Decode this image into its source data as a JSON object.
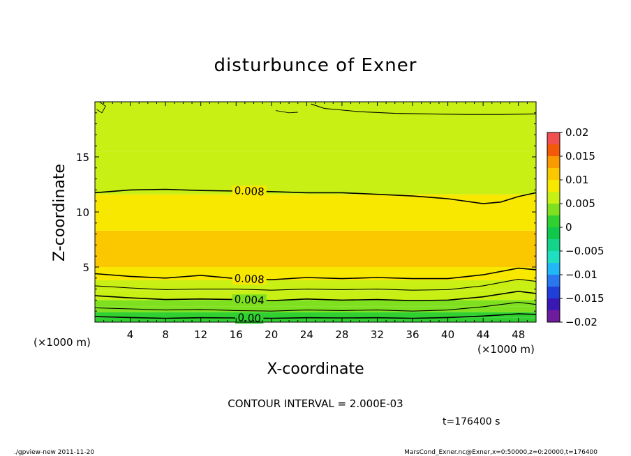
{
  "chart_data": {
    "type": "heatmap",
    "title": "disturbunce of Exner",
    "xlabel": "X-coordinate",
    "ylabel": "Z-coordinate",
    "x_unit": "(×1000 m)",
    "y_unit": "(×1000 m)",
    "xlim": [
      0,
      50
    ],
    "ylim": [
      0,
      20
    ],
    "x_ticks": [
      4,
      8,
      12,
      16,
      20,
      24,
      28,
      32,
      36,
      40,
      44,
      48
    ],
    "y_ticks": [
      5,
      10,
      15
    ],
    "contour_interval_text": "CONTOUR INTERVAL = 2.000E-03",
    "time_text": "t=176400 s",
    "footer_left": "./gpview-new   2011-11-20",
    "footer_right": "MarsCond_Exner.nc@Exner,x=0:50000,z=0:20000,t=176400",
    "colorbar": {
      "min": -0.02,
      "max": 0.02,
      "tick_values": [
        0.02,
        0.015,
        0.01,
        0.005,
        0,
        -0.005,
        -0.01,
        -0.015,
        -0.02
      ],
      "tick_labels": [
        "0.02",
        "0.015",
        "0.01",
        "0.005",
        "0",
        "−0.005",
        "−0.01",
        "−0.015",
        "−0.02"
      ],
      "levels": [
        -0.02,
        -0.0175,
        -0.015,
        -0.0125,
        -0.01,
        -0.0075,
        -0.005,
        -0.0025,
        0,
        0.0025,
        0.005,
        0.0075,
        0.01,
        0.0125,
        0.015,
        0.0175,
        0.02
      ],
      "colors": [
        "#6e1b9e",
        "#3a18b4",
        "#1f3fd8",
        "#2a78f0",
        "#21b8f5",
        "#1ee0c0",
        "#14d48a",
        "#10c84a",
        "#30d030",
        "#7ee01f",
        "#c8f014",
        "#f8e800",
        "#fbc800",
        "#f89a00",
        "#f25a0a",
        "#f05050",
        "#f49a9a"
      ]
    },
    "field_bands": [
      {
        "z_bottom": 0.0,
        "z_top": 0.4,
        "value": 0.0005
      },
      {
        "z_bottom": 0.4,
        "z_top": 0.9,
        "value": 0.0015
      },
      {
        "z_bottom": 0.9,
        "z_top": 1.4,
        "value": 0.0028
      },
      {
        "z_bottom": 1.4,
        "z_top": 2.0,
        "value": 0.004
      },
      {
        "z_bottom": 2.0,
        "z_top": 2.9,
        "value": 0.0055
      },
      {
        "z_bottom": 2.9,
        "z_top": 3.8,
        "value": 0.007
      },
      {
        "z_bottom": 3.8,
        "z_top": 5.0,
        "value": 0.0085
      },
      {
        "z_bottom": 5.0,
        "z_top": 8.3,
        "value": 0.011
      },
      {
        "z_bottom": 8.3,
        "z_top": 11.6,
        "value": 0.009
      },
      {
        "z_bottom": 11.6,
        "z_top": 15.5,
        "value": 0.0068
      },
      {
        "z_bottom": 15.5,
        "z_top": 20.0,
        "value": 0.0055
      }
    ],
    "contours": [
      {
        "level": 0.0,
        "label": "0.00",
        "label_x": 17.5,
        "points": [
          [
            0,
            0.5
          ],
          [
            4,
            0.42
          ],
          [
            8,
            0.35
          ],
          [
            12,
            0.4
          ],
          [
            16,
            0.38
          ],
          [
            20,
            0.35
          ],
          [
            24,
            0.4
          ],
          [
            28,
            0.38
          ],
          [
            32,
            0.4
          ],
          [
            36,
            0.35
          ],
          [
            40,
            0.42
          ],
          [
            44,
            0.55
          ],
          [
            48,
            0.75
          ],
          [
            50,
            0.7
          ]
        ]
      },
      {
        "level": 0.002,
        "label": "",
        "label_x": 0,
        "points": [
          [
            0,
            1.3
          ],
          [
            4,
            1.2
          ],
          [
            8,
            1.1
          ],
          [
            12,
            1.15
          ],
          [
            16,
            1.05
          ],
          [
            20,
            1.0
          ],
          [
            24,
            1.1
          ],
          [
            28,
            1.05
          ],
          [
            32,
            1.1
          ],
          [
            36,
            1.0
          ],
          [
            40,
            1.1
          ],
          [
            44,
            1.4
          ],
          [
            48,
            1.8
          ],
          [
            50,
            1.6
          ]
        ]
      },
      {
        "level": 0.004,
        "label": "0.004",
        "label_x": 17.5,
        "points": [
          [
            0,
            2.4
          ],
          [
            4,
            2.2
          ],
          [
            8,
            2.05
          ],
          [
            12,
            2.1
          ],
          [
            16,
            2.05
          ],
          [
            20,
            1.95
          ],
          [
            24,
            2.1
          ],
          [
            28,
            2.0
          ],
          [
            32,
            2.05
          ],
          [
            36,
            1.95
          ],
          [
            40,
            2.0
          ],
          [
            44,
            2.3
          ],
          [
            48,
            2.8
          ],
          [
            50,
            2.6
          ]
        ]
      },
      {
        "level": 0.006,
        "label": "",
        "label_x": 0,
        "points": [
          [
            0,
            3.3
          ],
          [
            4,
            3.1
          ],
          [
            8,
            2.95
          ],
          [
            12,
            3.0
          ],
          [
            16,
            3.0
          ],
          [
            20,
            2.9
          ],
          [
            24,
            3.0
          ],
          [
            28,
            2.95
          ],
          [
            32,
            3.0
          ],
          [
            36,
            2.9
          ],
          [
            40,
            2.95
          ],
          [
            44,
            3.3
          ],
          [
            48,
            3.9
          ],
          [
            50,
            3.7
          ]
        ]
      },
      {
        "level": 0.008,
        "label": "0.008",
        "label_x": 17.5,
        "points": [
          [
            0,
            4.4
          ],
          [
            4,
            4.15
          ],
          [
            8,
            4.0
          ],
          [
            12,
            4.25
          ],
          [
            16,
            3.95
          ],
          [
            20,
            3.85
          ],
          [
            24,
            4.05
          ],
          [
            28,
            3.95
          ],
          [
            32,
            4.05
          ],
          [
            36,
            3.95
          ],
          [
            40,
            3.95
          ],
          [
            44,
            4.3
          ],
          [
            48,
            4.9
          ],
          [
            50,
            4.75
          ]
        ]
      },
      {
        "level": 0.008,
        "label": "0.008",
        "label_x": 17.5,
        "points": [
          [
            0,
            11.75
          ],
          [
            4,
            12.0
          ],
          [
            8,
            12.05
          ],
          [
            12,
            11.95
          ],
          [
            16,
            11.9
          ],
          [
            20,
            11.85
          ],
          [
            24,
            11.75
          ],
          [
            28,
            11.75
          ],
          [
            32,
            11.6
          ],
          [
            36,
            11.45
          ],
          [
            40,
            11.2
          ],
          [
            44,
            10.75
          ],
          [
            46,
            10.9
          ],
          [
            48,
            11.4
          ],
          [
            50,
            11.75
          ]
        ]
      },
      {
        "level": 0.006,
        "label": "",
        "label_x": 0,
        "points": [
          [
            24.5,
            19.8
          ],
          [
            26,
            19.4
          ],
          [
            30,
            19.1
          ],
          [
            34,
            18.95
          ],
          [
            38,
            18.9
          ],
          [
            42,
            18.85
          ],
          [
            46,
            18.85
          ],
          [
            50,
            18.9
          ]
        ]
      }
    ],
    "small_contours": [
      {
        "points": [
          [
            0.2,
            19.3
          ],
          [
            0.8,
            19.0
          ],
          [
            1.2,
            19.6
          ],
          [
            0.5,
            20.0
          ]
        ]
      },
      {
        "points": [
          [
            20.5,
            19.2
          ],
          [
            22.0,
            19.0
          ],
          [
            23.0,
            19.05
          ]
        ]
      }
    ]
  }
}
